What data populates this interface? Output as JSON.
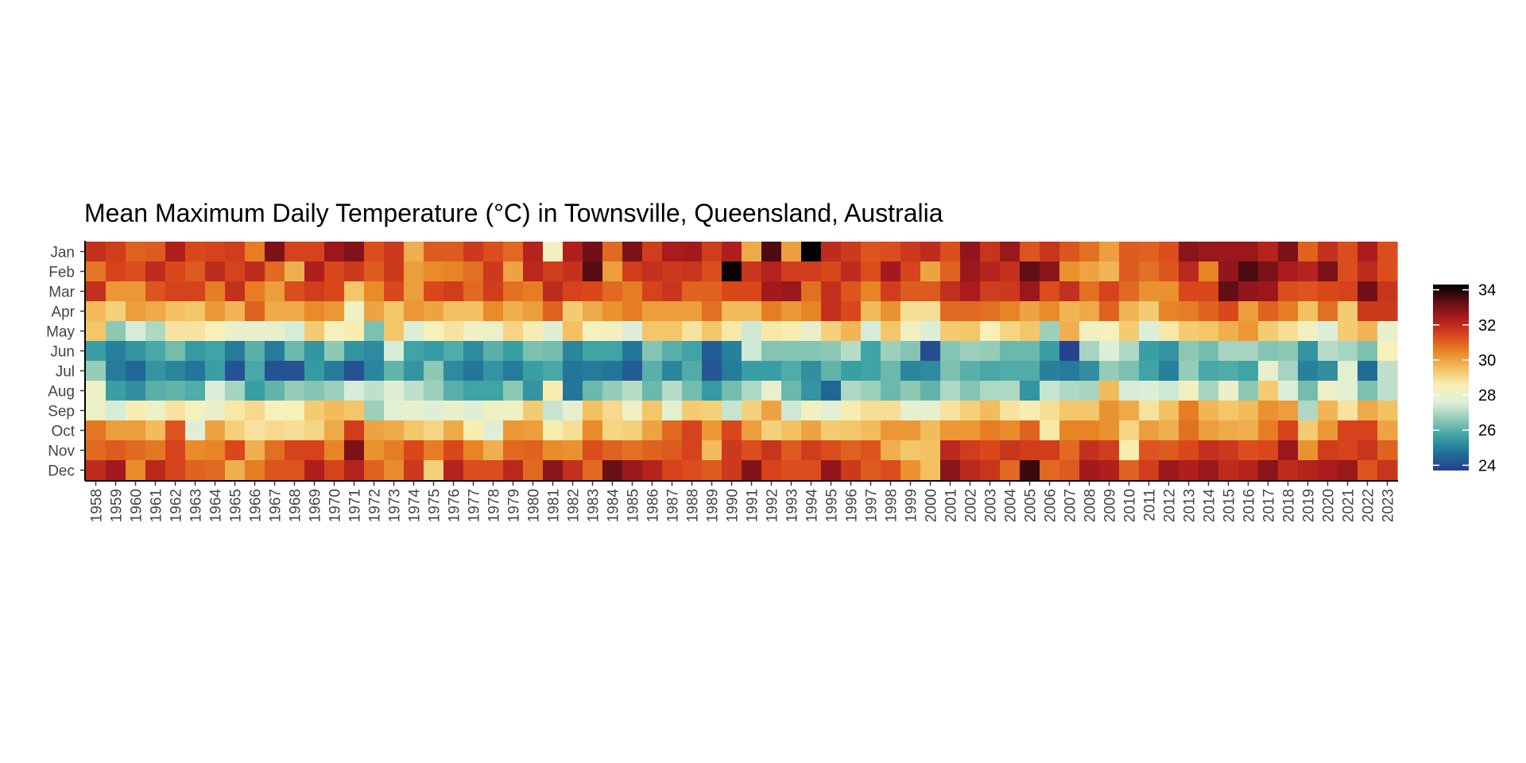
{
  "chart_data": {
    "type": "heatmap",
    "title": "Mean Maximum Daily Temperature (°C) in Townsville, Queensland, Australia",
    "xlabel": "",
    "ylabel": "",
    "x": [
      "1958",
      "1959",
      "1960",
      "1961",
      "1962",
      "1963",
      "1964",
      "1965",
      "1966",
      "1967",
      "1968",
      "1969",
      "1970",
      "1971",
      "1972",
      "1973",
      "1974",
      "1975",
      "1976",
      "1977",
      "1978",
      "1979",
      "1980",
      "1981",
      "1982",
      "1983",
      "1984",
      "1985",
      "1986",
      "1987",
      "1988",
      "1989",
      "1990",
      "1991",
      "1992",
      "1993",
      "1994",
      "1995",
      "1996",
      "1997",
      "1998",
      "1999",
      "2000",
      "2001",
      "2002",
      "2003",
      "2004",
      "2005",
      "2006",
      "2007",
      "2008",
      "2009",
      "2010",
      "2011",
      "2012",
      "2013",
      "2014",
      "2015",
      "2016",
      "2017",
      "2018",
      "2019",
      "2020",
      "2021",
      "2022",
      "2023"
    ],
    "y": [
      "Jan",
      "Feb",
      "Mar",
      "Apr",
      "May",
      "Jun",
      "Jul",
      "Aug",
      "Sep",
      "Oct",
      "Nov",
      "Dec"
    ],
    "legend": {
      "title": "",
      "position": "right",
      "ticks": [
        24,
        26,
        28,
        30,
        32,
        34
      ],
      "range": [
        23.7,
        34.3
      ]
    },
    "colorscale": [
      "#2a3d8f",
      "#1f6f97",
      "#3aa0a4",
      "#8cc8b3",
      "#dceeda",
      "#f8f1b8",
      "#f3c262",
      "#e88827",
      "#d9461b",
      "#ad1b1e",
      "#5e0d15",
      "#000000"
    ],
    "grid": false,
    "values": [
      [
        31.9,
        31.6,
        31.0,
        31.1,
        32.3,
        31.4,
        31.5,
        31.6,
        30.6,
        33.0,
        31.5,
        31.5,
        32.6,
        32.9,
        31.3,
        31.7,
        29.8,
        31.1,
        31.1,
        31.7,
        31.3,
        30.9,
        32.2,
        28.3,
        32.3,
        33.1,
        30.9,
        33.0,
        31.6,
        32.4,
        32.5,
        31.6,
        32.3,
        29.9,
        33.5,
        30.1,
        34.3,
        32.0,
        31.7,
        31.2,
        31.3,
        31.7,
        32.0,
        31.3,
        32.7,
        31.8,
        32.6,
        31.2,
        31.8,
        31.2,
        30.8,
        30.1,
        31.1,
        31.0,
        31.3,
        32.8,
        32.6,
        32.6,
        32.6,
        32.2,
        33.0,
        31.0,
        31.9,
        31.3,
        32.4,
        31.3
      ],
      [
        30.7,
        31.5,
        31.3,
        32.0,
        31.4,
        31.1,
        32.0,
        31.5,
        32.0,
        30.9,
        29.8,
        32.3,
        31.4,
        31.7,
        31.1,
        31.7,
        30.1,
        30.4,
        30.5,
        30.8,
        31.7,
        30.0,
        32.1,
        31.6,
        31.9,
        33.4,
        30.1,
        31.6,
        31.9,
        31.7,
        31.8,
        31.3,
        34.2,
        31.8,
        32.2,
        31.6,
        31.6,
        31.4,
        32.0,
        31.3,
        32.5,
        31.5,
        30.0,
        31.0,
        32.6,
        32.2,
        31.9,
        33.3,
        32.8,
        30.3,
        30.0,
        29.7,
        31.1,
        30.8,
        31.2,
        32.1,
        30.5,
        32.7,
        33.5,
        33.0,
        32.4,
        32.2,
        33.0,
        31.3,
        32.0,
        31.3
      ],
      [
        31.9,
        30.2,
        30.2,
        31.2,
        31.5,
        31.5,
        30.6,
        31.9,
        30.6,
        30.1,
        31.3,
        31.6,
        31.4,
        29.4,
        30.4,
        31.4,
        30.1,
        31.4,
        31.6,
        30.9,
        31.6,
        30.8,
        30.6,
        32.0,
        31.5,
        31.4,
        30.9,
        30.6,
        31.5,
        31.8,
        31.0,
        31.0,
        31.4,
        31.4,
        32.5,
        32.6,
        30.8,
        31.9,
        31.2,
        30.5,
        31.6,
        31.1,
        31.1,
        31.9,
        32.4,
        31.6,
        31.7,
        32.6,
        31.3,
        31.9,
        30.8,
        31.5,
        30.9,
        30.3,
        30.3,
        31.4,
        31.4,
        33.3,
        32.7,
        32.6,
        31.3,
        31.2,
        31.4,
        31.5,
        33.1,
        31.8
      ],
      [
        29.6,
        29.2,
        30.1,
        29.9,
        29.5,
        29.4,
        30.2,
        29.7,
        31.0,
        29.9,
        29.9,
        30.4,
        30.2,
        28.2,
        30.0,
        29.4,
        30.2,
        30.0,
        29.5,
        29.5,
        30.4,
        29.8,
        30.1,
        31.0,
        29.3,
        29.9,
        30.3,
        30.6,
        30.1,
        30.1,
        30.1,
        30.8,
        29.6,
        29.6,
        30.6,
        30.2,
        30.5,
        31.9,
        31.4,
        29.6,
        30.3,
        28.9,
        28.9,
        30.9,
        30.9,
        30.8,
        30.5,
        30.0,
        30.4,
        29.7,
        29.9,
        31.0,
        29.7,
        29.3,
        30.5,
        30.6,
        31.0,
        31.4,
        30.1,
        31.0,
        30.6,
        29.5,
        30.8,
        29.3,
        31.7,
        31.7
      ],
      [
        29.4,
        26.6,
        27.5,
        27.0,
        28.8,
        28.8,
        28.5,
        28.0,
        28.0,
        28.0,
        27.5,
        29.3,
        28.4,
        28.6,
        26.4,
        29.4,
        27.6,
        28.5,
        28.8,
        28.2,
        28.1,
        29.1,
        28.6,
        27.7,
        29.5,
        28.4,
        28.3,
        27.6,
        29.4,
        29.4,
        28.8,
        29.4,
        28.7,
        27.4,
        28.7,
        28.6,
        28.0,
        29.2,
        29.7,
        27.5,
        29.4,
        28.3,
        27.6,
        29.3,
        29.4,
        28.5,
        29.1,
        29.4,
        26.8,
        29.8,
        28.3,
        28.4,
        29.3,
        27.6,
        28.7,
        29.3,
        29.4,
        29.8,
        30.2,
        29.3,
        28.9,
        28.3,
        27.6,
        29.3,
        29.7,
        27.9
      ],
      [
        25.6,
        25.0,
        25.4,
        25.8,
        26.3,
        25.5,
        25.7,
        24.9,
        26.0,
        24.9,
        26.2,
        25.4,
        26.6,
        25.4,
        25.2,
        27.5,
        25.7,
        25.5,
        25.9,
        25.2,
        26.0,
        25.6,
        26.4,
        26.3,
        25.1,
        25.7,
        25.7,
        24.8,
        26.5,
        26.0,
        25.7,
        24.3,
        25.0,
        27.4,
        26.5,
        26.5,
        26.5,
        26.6,
        27.1,
        25.7,
        26.8,
        26.5,
        24.0,
        26.5,
        26.8,
        26.7,
        26.2,
        26.2,
        25.6,
        23.8,
        26.9,
        27.6,
        27.0,
        25.6,
        25.4,
        26.6,
        26.3,
        26.9,
        26.9,
        26.5,
        26.6,
        25.4,
        27.1,
        26.9,
        26.4,
        28.5
      ],
      [
        26.7,
        24.9,
        24.5,
        25.4,
        25.1,
        24.8,
        25.6,
        24.1,
        25.8,
        24.1,
        24.1,
        25.5,
        24.9,
        24.1,
        25.1,
        26.1,
        25.4,
        26.6,
        25.2,
        24.8,
        25.4,
        24.9,
        25.6,
        25.8,
        24.8,
        24.9,
        24.8,
        24.3,
        26.0,
        25.1,
        25.9,
        24.2,
        24.9,
        25.6,
        25.6,
        25.9,
        25.3,
        26.1,
        25.6,
        25.7,
        26.2,
        25.1,
        25.2,
        26.4,
        26.0,
        25.8,
        25.9,
        25.9,
        25.0,
        24.9,
        25.3,
        26.7,
        26.4,
        25.7,
        25.0,
        26.7,
        25.8,
        25.9,
        25.7,
        27.9,
        26.9,
        25.0,
        25.3,
        27.8,
        24.6,
        27.2
      ],
      [
        28.2,
        25.6,
        25.3,
        26.0,
        26.1,
        25.9,
        27.6,
        26.9,
        25.6,
        26.1,
        26.7,
        26.5,
        26.8,
        27.5,
        27.2,
        27.7,
        27.2,
        26.8,
        26.0,
        25.7,
        25.7,
        26.6,
        25.4,
        28.6,
        24.8,
        26.2,
        26.7,
        27.1,
        26.2,
        27.1,
        26.3,
        25.5,
        26.3,
        27.0,
        28.0,
        26.2,
        25.4,
        24.5,
        27.0,
        26.8,
        26.2,
        26.6,
        26.1,
        27.0,
        26.5,
        27.0,
        27.0,
        25.4,
        27.3,
        27.0,
        26.9,
        29.6,
        27.5,
        27.6,
        27.4,
        28.3,
        26.9,
        28.0,
        26.6,
        29.3,
        27.6,
        26.3,
        28.1,
        27.8,
        26.4,
        27.2
      ],
      [
        28.1,
        27.5,
        28.6,
        28.1,
        28.8,
        28.4,
        28.0,
        28.7,
        29.0,
        28.5,
        28.5,
        29.3,
        29.6,
        29.4,
        26.8,
        27.8,
        27.9,
        27.7,
        28.0,
        27.7,
        28.2,
        28.2,
        29.3,
        27.3,
        27.9,
        29.5,
        29.0,
        28.2,
        29.4,
        27.8,
        29.3,
        29.2,
        27.3,
        29.2,
        30.0,
        27.4,
        28.3,
        27.8,
        28.6,
        28.9,
        28.9,
        27.9,
        27.9,
        28.8,
        29.2,
        29.6,
        28.8,
        28.6,
        28.9,
        29.4,
        29.4,
        30.3,
        29.9,
        28.8,
        29.5,
        30.6,
        29.7,
        29.4,
        29.6,
        30.3,
        30.1,
        27.0,
        29.7,
        28.8,
        29.9,
        29.5
      ],
      [
        30.7,
        30.1,
        30.1,
        29.6,
        31.2,
        27.7,
        30.0,
        29.2,
        28.8,
        29.0,
        28.9,
        29.1,
        29.9,
        31.6,
        30.0,
        29.9,
        29.4,
        29.1,
        29.9,
        28.6,
        27.7,
        30.2,
        30.1,
        28.6,
        28.9,
        30.4,
        29.1,
        29.2,
        30.0,
        30.9,
        31.5,
        30.2,
        31.4,
        30.1,
        29.2,
        29.5,
        30.0,
        29.3,
        29.4,
        29.6,
        30.2,
        30.2,
        29.6,
        30.2,
        30.2,
        30.6,
        30.4,
        31.0,
        28.7,
        30.5,
        30.5,
        30.3,
        29.1,
        30.1,
        29.8,
        30.8,
        30.1,
        29.9,
        29.8,
        30.6,
        31.5,
        29.3,
        30.2,
        31.5,
        31.5,
        30.0
      ],
      [
        30.9,
        31.1,
        30.9,
        30.7,
        31.5,
        30.4,
        30.5,
        31.4,
        29.8,
        30.8,
        31.5,
        31.5,
        30.5,
        33.0,
        30.3,
        30.6,
        31.4,
        30.6,
        31.4,
        30.5,
        29.8,
        30.9,
        31.0,
        30.4,
        30.3,
        31.3,
        31.0,
        30.8,
        31.0,
        31.1,
        31.5,
        29.6,
        31.7,
        31.3,
        31.8,
        31.1,
        31.6,
        31.3,
        31.0,
        31.2,
        29.8,
        29.4,
        29.5,
        32.1,
        31.6,
        31.4,
        31.8,
        31.6,
        31.6,
        30.9,
        31.9,
        31.6,
        28.6,
        31.2,
        31.1,
        31.4,
        31.9,
        31.7,
        31.3,
        31.4,
        32.6,
        30.3,
        31.6,
        31.5,
        31.8,
        31.0
      ],
      [
        32.0,
        32.5,
        30.4,
        32.1,
        31.5,
        31.0,
        30.9,
        29.8,
        30.6,
        31.2,
        31.2,
        32.3,
        31.5,
        32.2,
        31.0,
        30.4,
        31.7,
        29.2,
        32.2,
        31.3,
        31.3,
        32.1,
        30.9,
        32.8,
        31.9,
        30.9,
        33.2,
        32.6,
        32.2,
        31.5,
        31.3,
        31.1,
        31.7,
        32.9,
        31.5,
        31.3,
        31.3,
        32.7,
        31.7,
        31.1,
        31.3,
        30.3,
        29.5,
        32.8,
        32.1,
        31.8,
        30.9,
        33.7,
        30.9,
        31.1,
        32.5,
        32.3,
        31.0,
        31.6,
        32.6,
        32.3,
        32.6,
        32.0,
        32.2,
        32.8,
        32.0,
        32.2,
        32.4,
        32.6,
        31.2,
        31.8
      ]
    ]
  }
}
